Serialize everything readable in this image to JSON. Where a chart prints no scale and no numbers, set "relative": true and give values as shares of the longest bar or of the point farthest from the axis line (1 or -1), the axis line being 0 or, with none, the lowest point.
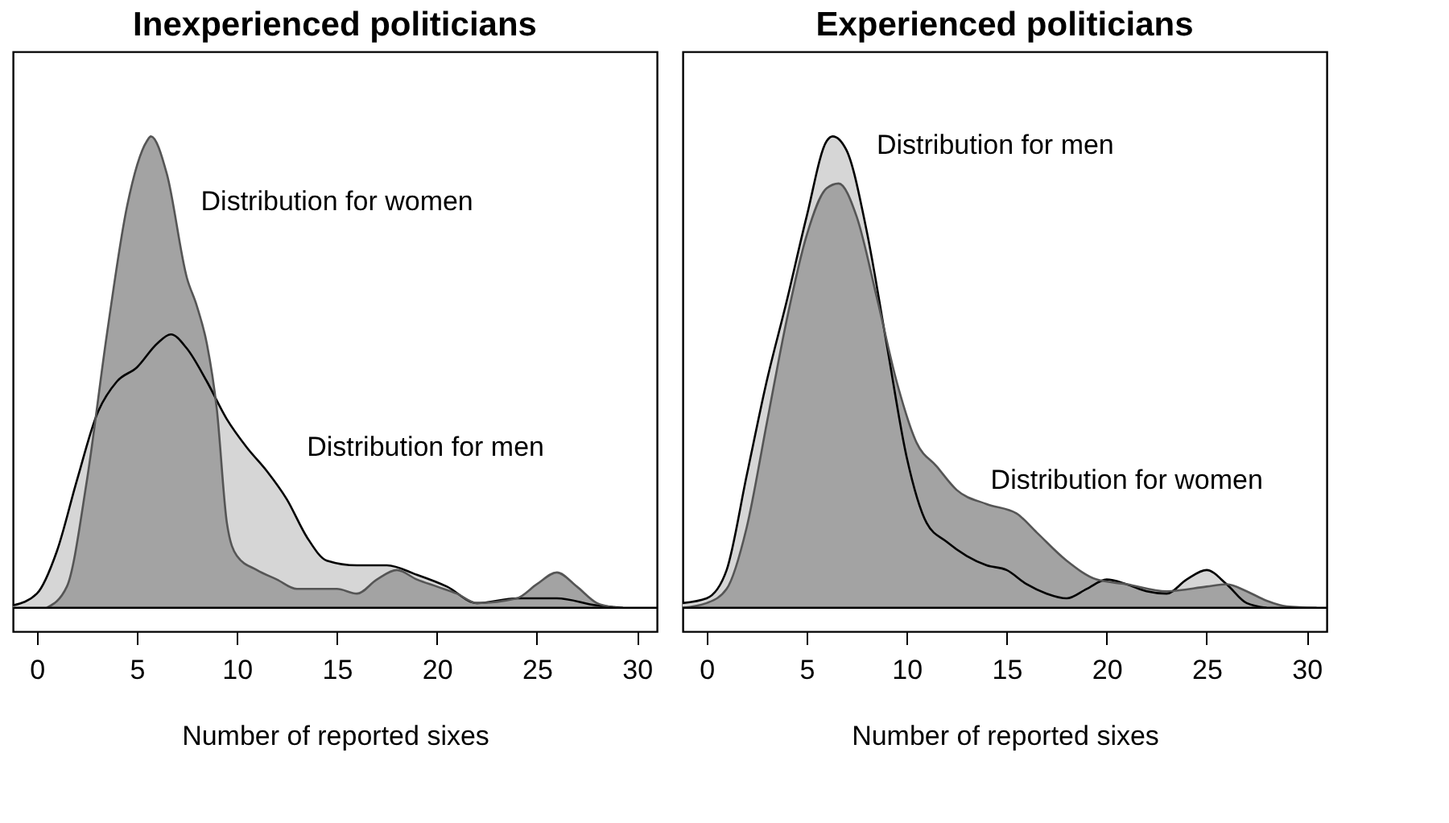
{
  "chart_data": [
    {
      "type": "area",
      "title": "Inexperienced politicians",
      "xlabel": "Number of reported sixes",
      "relative": true,
      "xlim": [
        -1.2,
        31
      ],
      "xticks": [
        0,
        5,
        10,
        15,
        20,
        25,
        30
      ],
      "series": [
        {
          "name": "Distribution for men",
          "color": "#d6d6d6",
          "x": [
            -1.2,
            0,
            1,
            2,
            3,
            4,
            5,
            6,
            6.7,
            7.5,
            8.5,
            9.5,
            10.5,
            11.5,
            12.5,
            13.5,
            14.5,
            16,
            17.5,
            19,
            20.5,
            22,
            24,
            25,
            26,
            28,
            29.3
          ],
          "values": [
            0.005,
            0.03,
            0.12,
            0.27,
            0.41,
            0.48,
            0.51,
            0.56,
            0.58,
            0.55,
            0.48,
            0.4,
            0.34,
            0.29,
            0.23,
            0.15,
            0.1,
            0.09,
            0.09,
            0.07,
            0.045,
            0.01,
            0.02,
            0.02,
            0.02,
            0.005,
            0
          ]
        },
        {
          "name": "Distribution for women",
          "color": "#a3a3a3",
          "x": [
            0.5,
            1.5,
            2.5,
            3.5,
            4.5,
            5.5,
            5.7,
            6.5,
            7.5,
            8,
            8.5,
            9,
            9.5,
            10,
            11,
            12,
            13,
            14,
            15,
            16,
            17,
            18,
            19,
            20,
            21,
            22,
            24,
            25,
            26,
            27,
            28,
            29
          ],
          "values": [
            0,
            0.045,
            0.27,
            0.58,
            0.85,
            0.99,
            1,
            0.92,
            0.7,
            0.64,
            0.56,
            0.42,
            0.18,
            0.11,
            0.08,
            0.06,
            0.04,
            0.04,
            0.04,
            0.03,
            0.06,
            0.08,
            0.06,
            0.045,
            0.03,
            0.01,
            0.02,
            0.05,
            0.075,
            0.045,
            0.01,
            0
          ]
        }
      ]
    },
    {
      "type": "area",
      "title": "Experienced politicians",
      "xlabel": "Number of reported sixes",
      "relative": true,
      "xlim": [
        -1.2,
        31
      ],
      "xticks": [
        0,
        5,
        10,
        15,
        20,
        25,
        30
      ],
      "series": [
        {
          "name": "Distribution for men",
          "color": "#d6d6d6",
          "x": [
            -1.2,
            0,
            1,
            2,
            3,
            4,
            5,
            6,
            6.3,
            7,
            8,
            9,
            10,
            11,
            12,
            13,
            14,
            15,
            16,
            17,
            18,
            19,
            20,
            21,
            22,
            23,
            24,
            25,
            26,
            27,
            28
          ],
          "values": [
            0.01,
            0.02,
            0.08,
            0.28,
            0.48,
            0.65,
            0.83,
            0.99,
            1,
            0.97,
            0.8,
            0.56,
            0.32,
            0.18,
            0.14,
            0.11,
            0.09,
            0.08,
            0.05,
            0.03,
            0.02,
            0.04,
            0.06,
            0.05,
            0.035,
            0.03,
            0.06,
            0.08,
            0.05,
            0.01,
            0
          ]
        },
        {
          "name": "Distribution for women",
          "color": "#a3a3a3",
          "x": [
            -1.2,
            0,
            1,
            2,
            3,
            4,
            5,
            6,
            6.6,
            7.5,
            8.5,
            9.5,
            10.5,
            11.5,
            12.5,
            14,
            15.5,
            16.5,
            18,
            19.5,
            21,
            23,
            25,
            26,
            27,
            28,
            29,
            30.5
          ],
          "values": [
            0,
            0.01,
            0.04,
            0.17,
            0.39,
            0.61,
            0.79,
            0.89,
            0.9,
            0.83,
            0.66,
            0.48,
            0.35,
            0.3,
            0.25,
            0.22,
            0.2,
            0.16,
            0.1,
            0.06,
            0.05,
            0.035,
            0.045,
            0.05,
            0.035,
            0.015,
            0.003,
            0
          ]
        }
      ]
    }
  ]
}
